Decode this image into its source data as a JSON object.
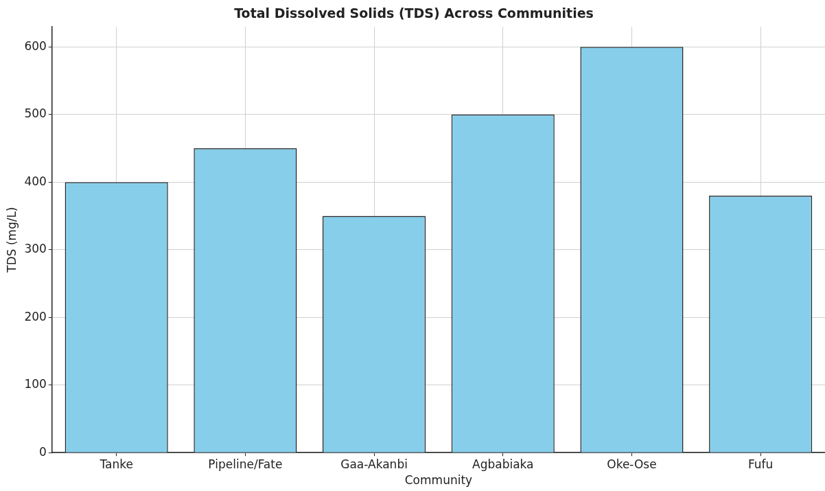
{
  "chart_data": {
    "type": "bar",
    "title": "Total Dissolved Solids (TDS) Across Communities",
    "xlabel": "Community",
    "ylabel": "TDS (mg/L)",
    "categories": [
      "Tanke",
      "Pipeline/Fate",
      "Gaa-Akanbi",
      "Agbabiaka",
      "Oke-Ose",
      "Fufu"
    ],
    "values": [
      400,
      450,
      350,
      500,
      600,
      380
    ],
    "color": "#87ceeb",
    "ylim": [
      0,
      630
    ],
    "yticks": [
      0,
      100,
      200,
      300,
      400,
      500,
      600
    ],
    "grid": true,
    "legend": false
  }
}
